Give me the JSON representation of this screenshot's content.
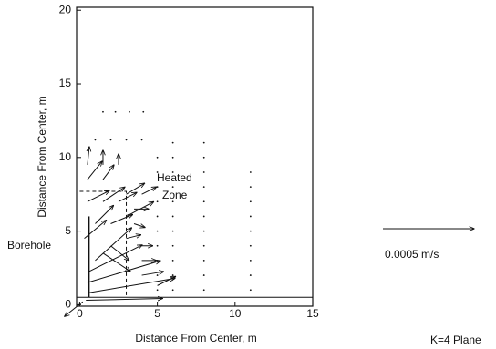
{
  "chart_data": {
    "type": "quiver",
    "xlabel": "Distance From Center, m",
    "ylabel": "Distance From Center, m",
    "annotations": [
      "Heated",
      "Zone",
      "Borehole"
    ],
    "plane_label": "K=4 Plane",
    "reference": {
      "value": 0.0005,
      "label": "0.0005 m/s"
    },
    "xlim": [
      -0.2,
      15
    ],
    "ylim": [
      -0.1,
      20.2
    ],
    "xticks": [
      0,
      5,
      10,
      15
    ],
    "yticks": [
      0,
      5,
      10,
      15,
      20
    ],
    "color": "#111111",
    "vectors": {
      "x": [
        0.4,
        0.5,
        0.5,
        0.5,
        1,
        1.5,
        2,
        0.3,
        1,
        2,
        3,
        0.5,
        1.5,
        2.5,
        3,
        4,
        0.5,
        1.5,
        0.5,
        1.5,
        2.5,
        3.5,
        3.5,
        3,
        4,
        0.2,
        4,
        4,
        5
      ],
      "y": [
        0.3,
        0.8,
        1.5,
        2.2,
        3,
        3.5,
        4,
        4.5,
        5.5,
        5.5,
        6,
        7,
        7,
        7,
        7.5,
        7.5,
        8.5,
        8.5,
        9.5,
        9.5,
        9.5,
        6.5,
        5.5,
        4.5,
        4,
        0.2,
        3,
        2,
        1.3
      ],
      "u": [
        0.00042,
        0.00048,
        0.0004,
        0.0003,
        0.0002,
        0.00015,
        0.0001,
        0.00012,
        0.0001,
        0.00012,
        0.00015,
        0.00012,
        0.00012,
        0.0001,
        0.0001,
        8e-05,
        8e-05,
        6e-05,
        1e-05,
        0,
        0,
        8e-05,
        6e-05,
        8e-05,
        6e-05,
        -0.0001,
        8e-05,
        0.00012,
        0.0001
      ],
      "v": [
        1e-05,
        8e-05,
        0.00012,
        0.00015,
        0.00018,
        -0.0001,
        -8e-05,
        0.0001,
        0.0001,
        5e-05,
        8e-05,
        6e-05,
        8e-05,
        5e-05,
        6e-05,
        4e-05,
        0.0001,
        8e-05,
        0.0001,
        8e-05,
        6e-05,
        0,
        -2e-05,
        2e-05,
        0,
        -8e-05,
        0,
        2e-05,
        5e-05
      ]
    },
    "dots": {
      "x": [
        8,
        8,
        8,
        8,
        8,
        8,
        8,
        8,
        8,
        8,
        8,
        6,
        6,
        6,
        6,
        6,
        6,
        6,
        6,
        6,
        6,
        6,
        5,
        5,
        5,
        5,
        5,
        5,
        5,
        5,
        5,
        5,
        11,
        11,
        11,
        11,
        11,
        11,
        11,
        11,
        11,
        1.5,
        2.3,
        3.2,
        4.1,
        1,
        2,
        3,
        4
      ],
      "y": [
        1,
        2,
        3,
        4,
        5,
        6,
        7,
        8,
        9,
        10,
        11,
        1,
        2,
        3,
        4,
        5,
        6,
        7,
        8,
        9,
        10,
        11,
        1,
        2,
        3,
        4,
        5,
        6,
        7,
        8,
        9,
        10,
        1,
        2,
        3,
        4,
        5,
        6,
        7,
        8,
        9,
        13.1,
        13.1,
        13.1,
        13.1,
        11.2,
        11.2,
        11.2,
        11.2
      ]
    }
  }
}
